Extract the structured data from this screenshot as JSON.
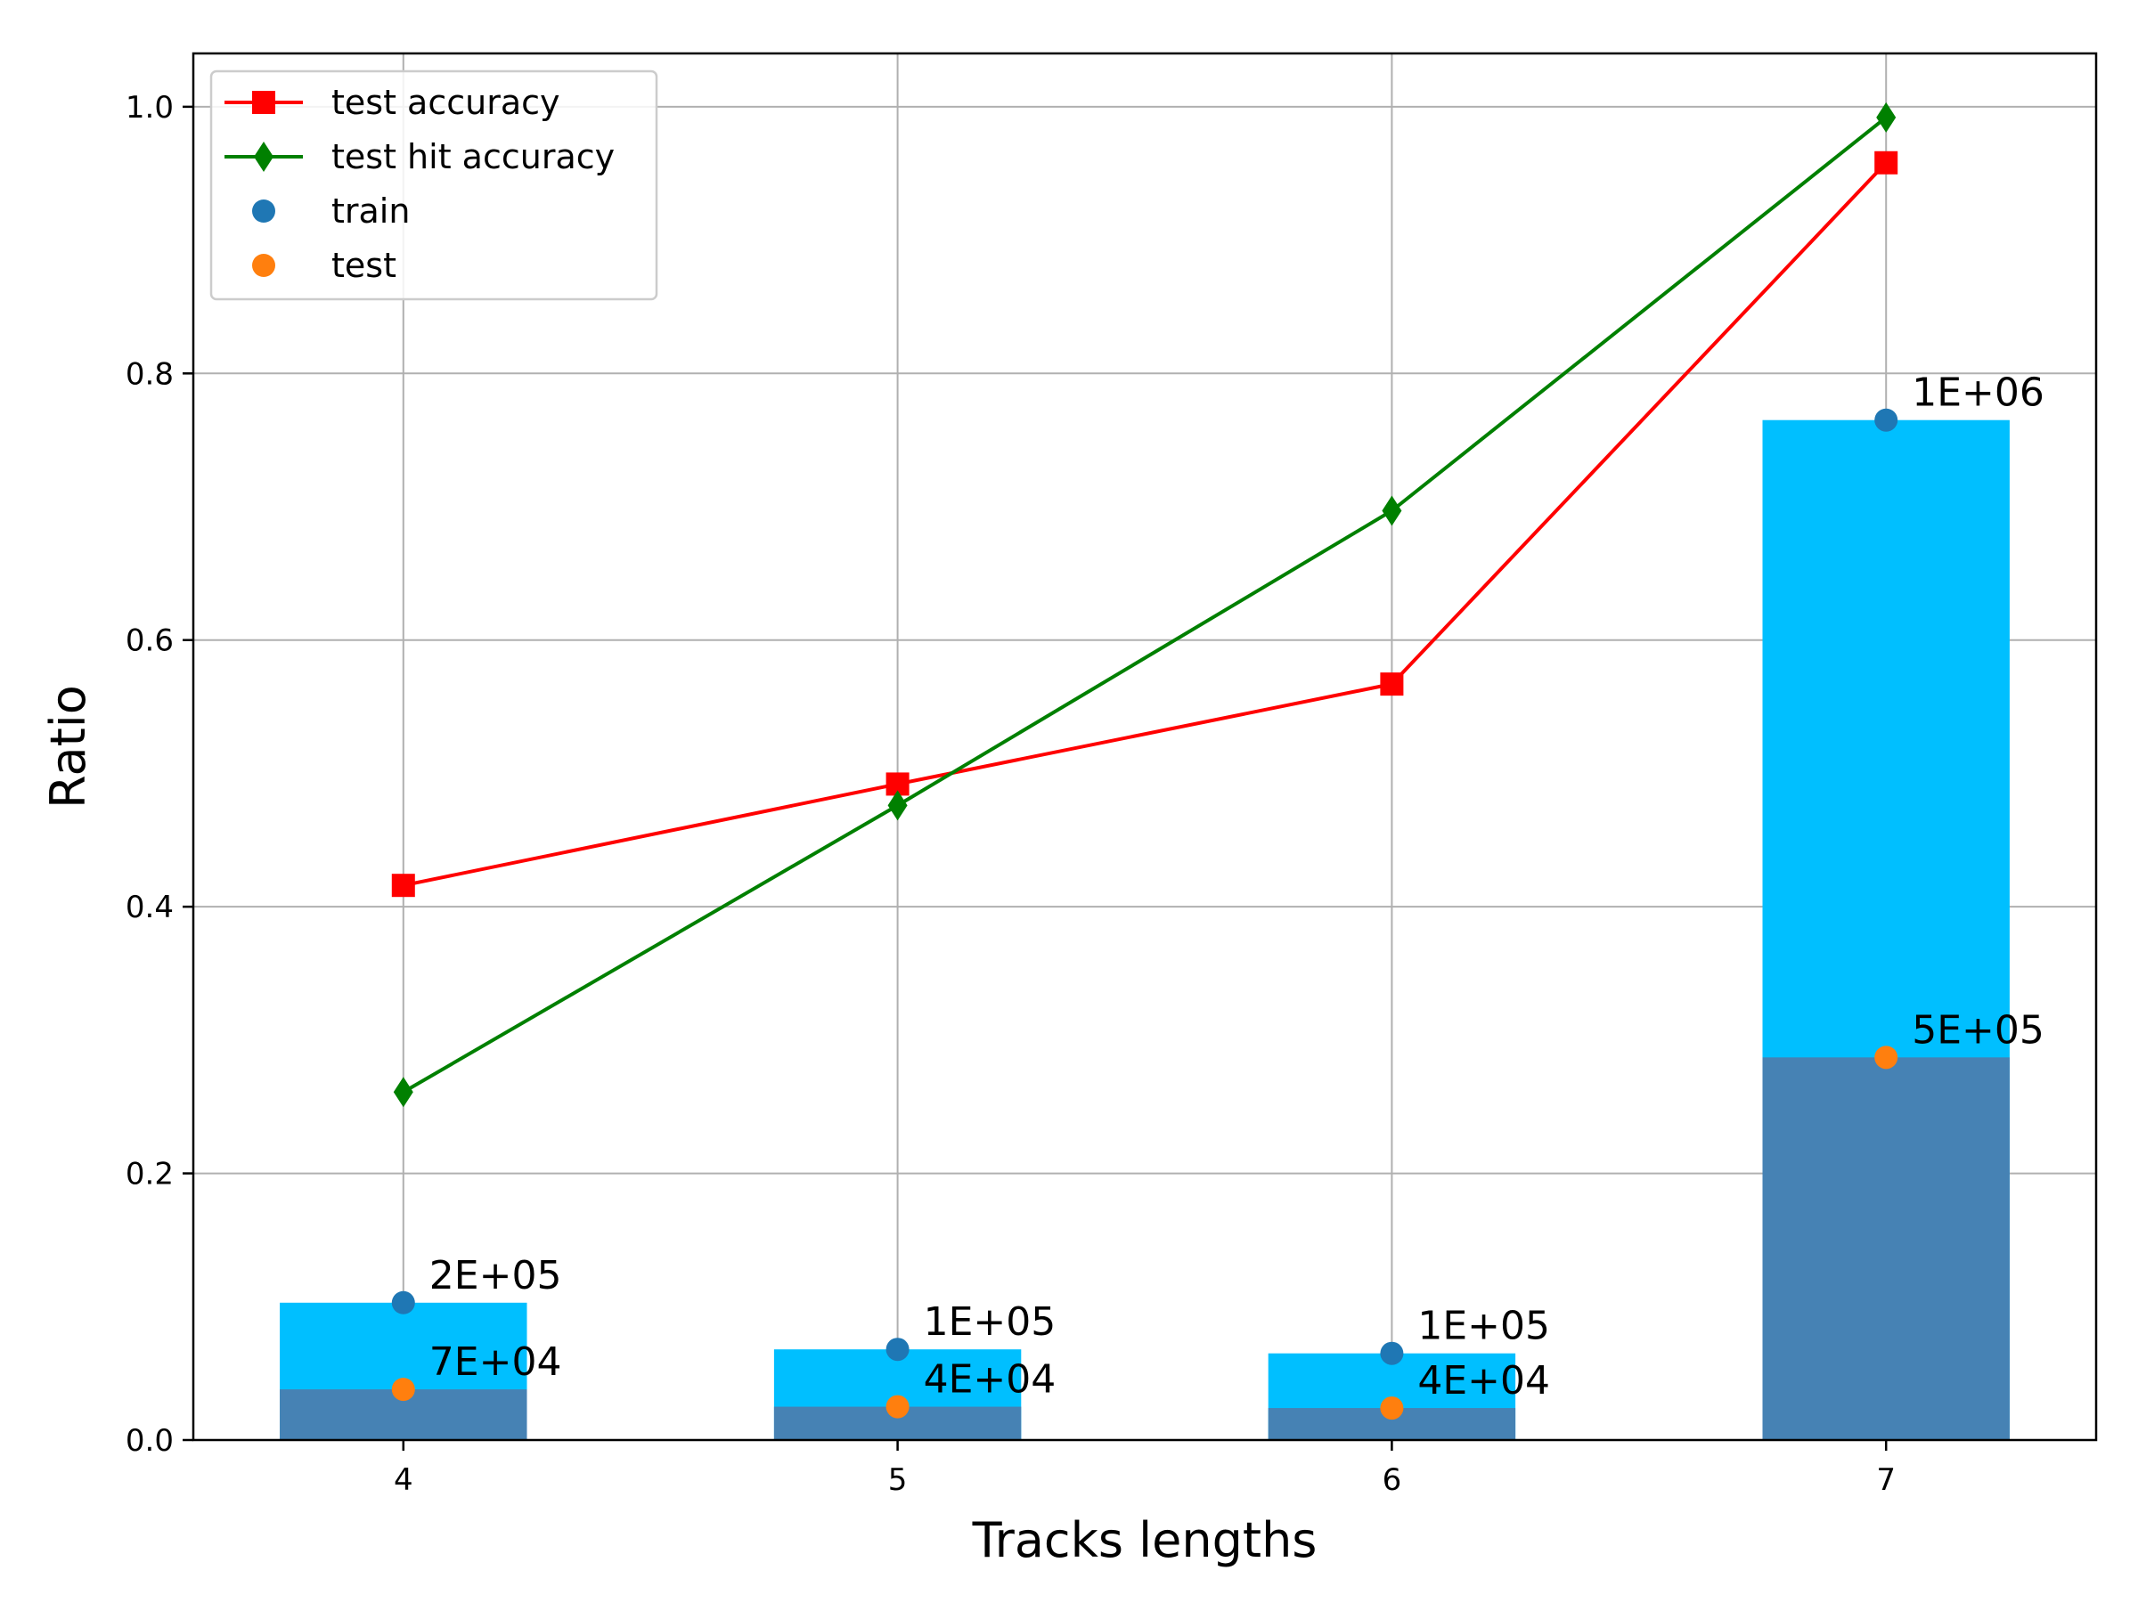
{
  "chart_data": {
    "type": "bar",
    "xlabel": "Tracks lengths",
    "ylabel": "Ratio",
    "categories": [
      "4",
      "5",
      "6",
      "7"
    ],
    "x": [
      4,
      5,
      6,
      7
    ],
    "ylim": [
      0.0,
      1.04
    ],
    "yticks": [
      0.0,
      0.2,
      0.4,
      0.6,
      0.8,
      1.0
    ],
    "ytick_labels": [
      "0.0",
      "0.2",
      "0.4",
      "0.6",
      "0.8",
      "1.0"
    ],
    "grid": true,
    "legend_position": "top-left",
    "bars": [
      {
        "name": "train",
        "values": [
          0.103,
          0.068,
          0.065,
          0.765
        ],
        "color": "#00bfff"
      },
      {
        "name": "test",
        "values": [
          0.038,
          0.025,
          0.024,
          0.287
        ],
        "color": "#4682b4"
      }
    ],
    "series": [
      {
        "name": "test accuracy",
        "type": "line",
        "marker": "square",
        "color": "#ff0000",
        "values": [
          0.416,
          0.492,
          0.567,
          0.958
        ]
      },
      {
        "name": "test hit accuracy",
        "type": "line",
        "marker": "diamond",
        "color": "#008000",
        "values": [
          0.261,
          0.476,
          0.697,
          0.992
        ]
      },
      {
        "name": "train",
        "type": "scatter",
        "marker": "circle",
        "color": "#1f77b4",
        "values": [
          0.103,
          0.068,
          0.065,
          0.765
        ],
        "labels": [
          "2E+05",
          "1E+05",
          "1E+05",
          "1E+06"
        ]
      },
      {
        "name": "test",
        "type": "scatter",
        "marker": "circle",
        "color": "#ff7f0e",
        "values": [
          0.038,
          0.025,
          0.024,
          0.287
        ],
        "labels": [
          "7E+04",
          "4E+04",
          "4E+04",
          "5E+05"
        ]
      }
    ],
    "legend": [
      "test accuracy",
      "test hit accuracy",
      "train",
      "test"
    ]
  }
}
